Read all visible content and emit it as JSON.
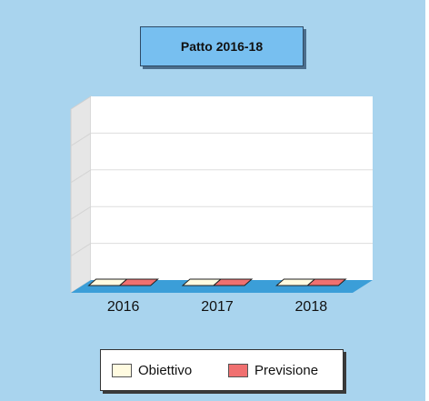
{
  "chart_data": {
    "type": "bar",
    "title": "Patto 2016-18",
    "categories": [
      "2016",
      "2017",
      "2018"
    ],
    "series": [
      {
        "name": "Obiettivo",
        "values": [
          0,
          0,
          0
        ],
        "color": "#fffbe0"
      },
      {
        "name": "Previsione",
        "values": [
          0,
          0,
          0
        ],
        "color": "#f07070"
      }
    ],
    "ylim": [
      0,
      5
    ],
    "grid": true,
    "legend_position": "bottom",
    "xlabel": "",
    "ylabel": ""
  },
  "colors": {
    "background": "#a9d4ee",
    "title_box": "#77bff0",
    "plot_wall": "#ffffff",
    "side_wall": "#e6e6e6",
    "floor": "#3b9ed8"
  }
}
